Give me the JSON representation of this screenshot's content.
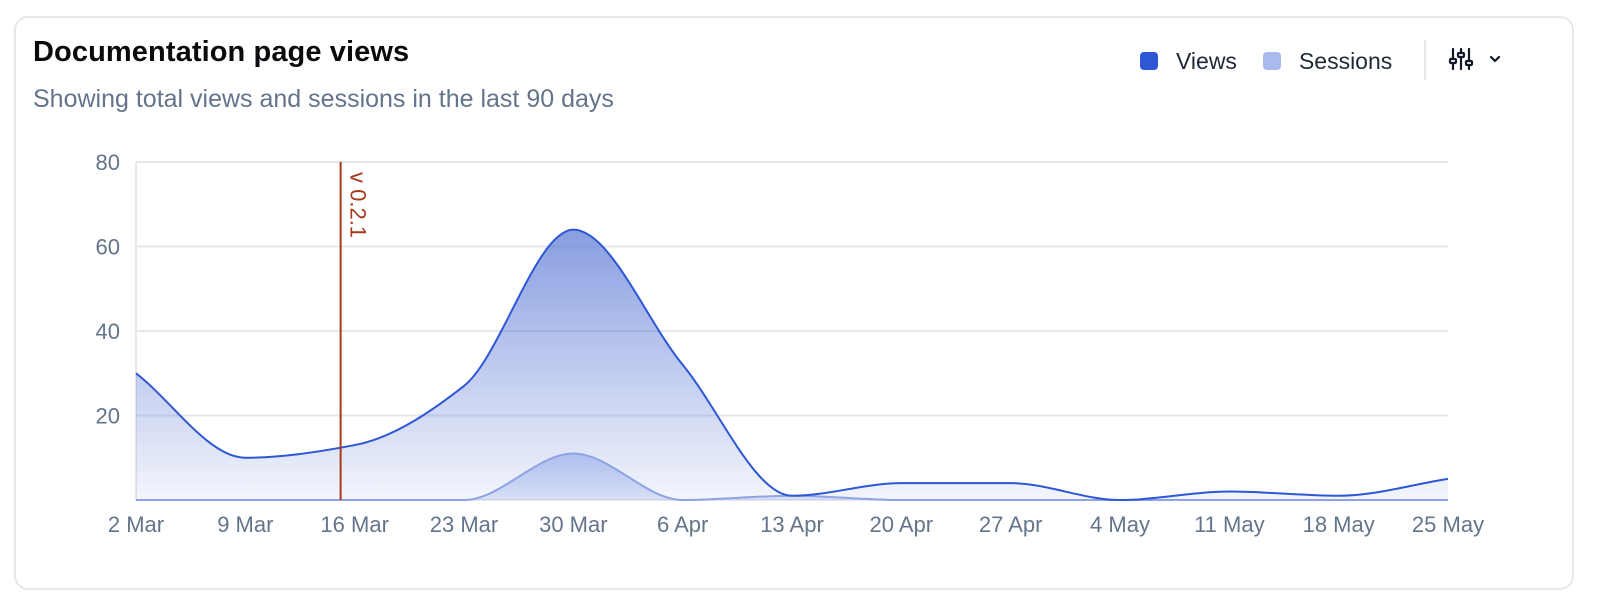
{
  "header": {
    "title": "Documentation page views",
    "subtitle": "Showing total views and sessions in the last 90 days"
  },
  "legend": {
    "items": [
      {
        "label": "Views",
        "color": "#2e57d6"
      },
      {
        "label": "Sessions",
        "color": "#a9bbee"
      }
    ]
  },
  "controls": {
    "settings_icon": "sliders-icon",
    "dropdown_icon": "chevron-down-icon"
  },
  "colors": {
    "views_line": "#2e57d6",
    "views_fill": "#5a78d4",
    "sessions_fill": "#a9bbee",
    "annotation": "#a83a1c"
  },
  "chart_data": {
    "type": "area",
    "title": "Documentation page views",
    "subtitle": "Showing total views and sessions in the last 90 days",
    "xlabel": "",
    "ylabel": "",
    "x_ticks": [
      "2 Mar",
      "9 Mar",
      "16 Mar",
      "23 Mar",
      "30 Mar",
      "6 Apr",
      "13 Apr",
      "20 Apr",
      "27 Apr",
      "4 May",
      "11 May",
      "18 May",
      "25 May"
    ],
    "yticks": [
      "20",
      "40",
      "60",
      "80"
    ],
    "ylim": [
      0,
      80
    ],
    "grid": true,
    "legend_position": "top-right",
    "series": [
      {
        "name": "Views",
        "values": [
          30,
          10,
          13,
          27,
          64,
          32,
          1,
          4,
          4,
          0,
          2,
          1,
          5
        ]
      },
      {
        "name": "Sessions",
        "values": [
          0,
          0,
          0,
          0,
          11,
          0,
          1,
          0,
          0,
          0,
          0,
          0,
          0
        ]
      }
    ],
    "annotations": [
      {
        "label": "v 0.2.1",
        "x": 13.1
      }
    ]
  }
}
